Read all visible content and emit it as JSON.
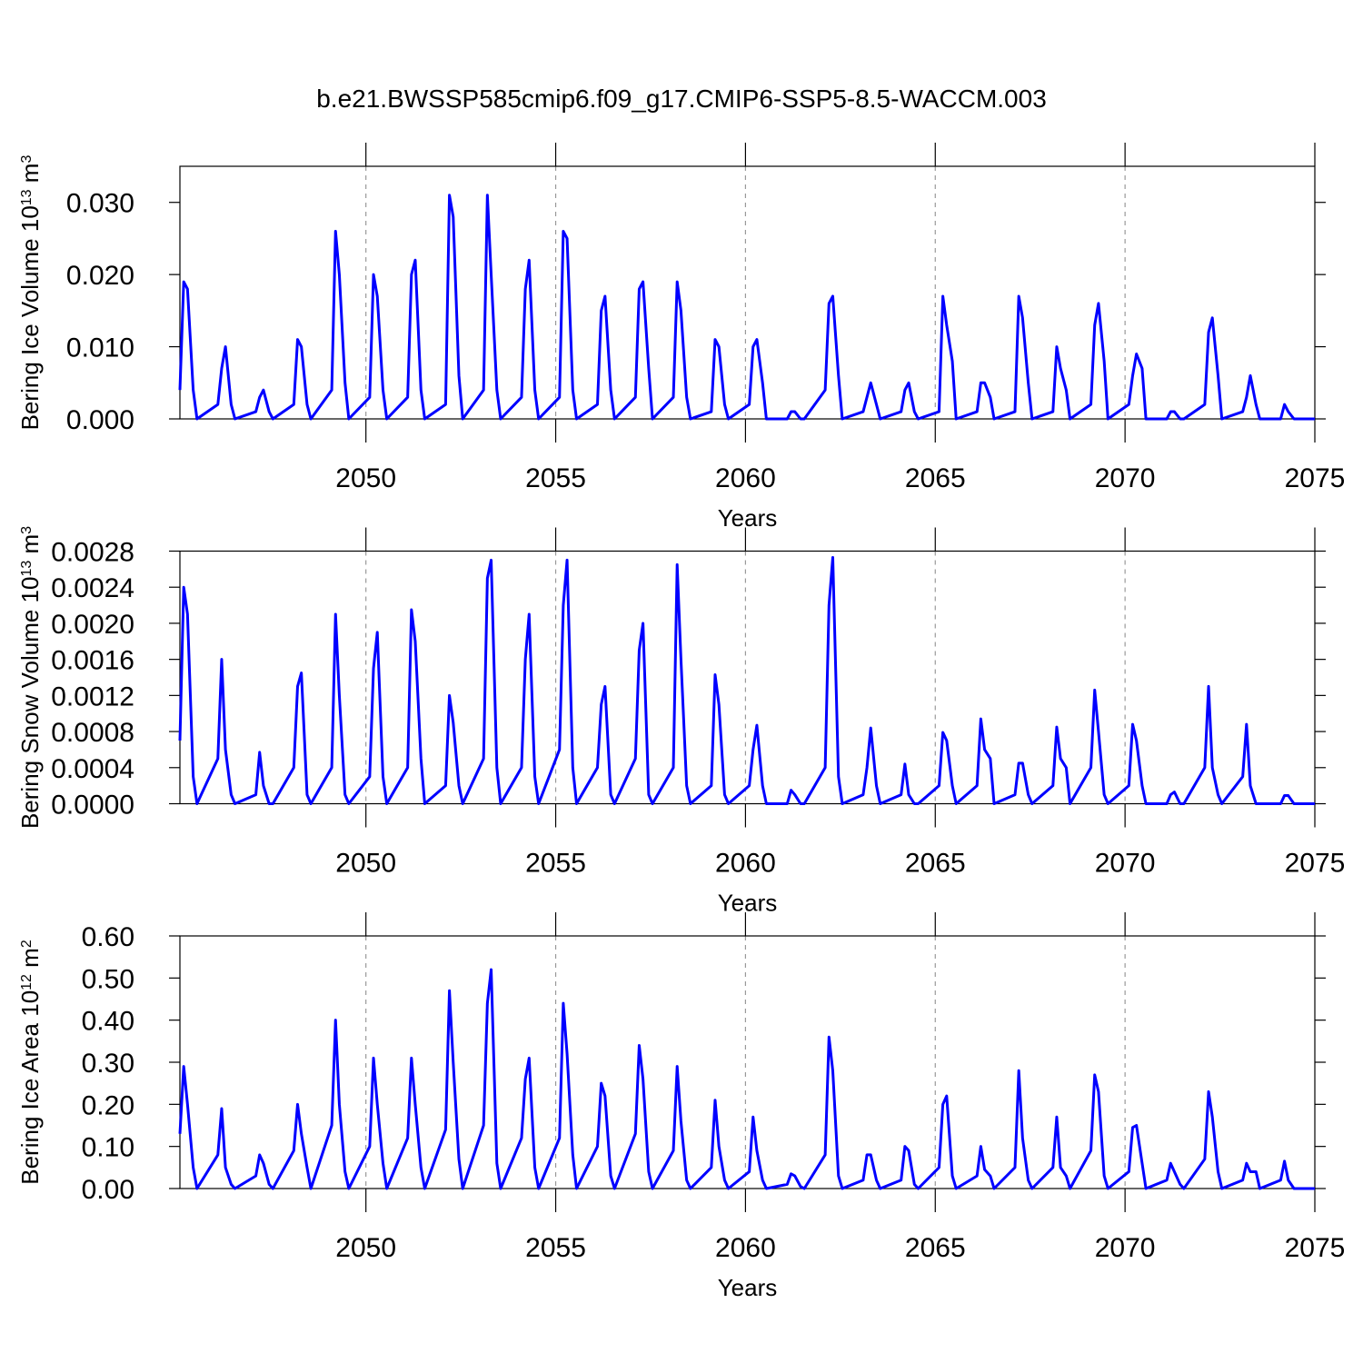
{
  "title": "b.e21.BWSSP585cmip6.f09_g17.CMIP6-SSP5-8.5-WACCM.003",
  "chart_data": [
    {
      "type": "line",
      "color": "#0000ff",
      "ylabel": [
        "Bering Ice Volume 10",
        "13",
        " m",
        "3"
      ],
      "xlabel": "Years",
      "xlim": [
        2045.1,
        2075
      ],
      "xticks": [
        2050,
        2055,
        2060,
        2065,
        2070,
        2075
      ],
      "grid": true,
      "ylim": [
        0,
        0.035
      ],
      "yticks": [
        {
          "value": 0,
          "label": "0.000"
        },
        {
          "value": 0.01,
          "label": "0.010"
        },
        {
          "value": 0.02,
          "label": "0.020"
        },
        {
          "value": 0.03,
          "label": "0.030"
        }
      ],
      "x": [
        2045.1,
        2045.2,
        2045.3,
        2045.45,
        2045.55,
        2046.1,
        2046.2,
        2046.3,
        2046.45,
        2046.55,
        2047.1,
        2047.2,
        2047.3,
        2047.45,
        2047.55,
        2048.1,
        2048.2,
        2048.3,
        2048.45,
        2048.55,
        2049.1,
        2049.2,
        2049.3,
        2049.45,
        2049.55,
        2050.1,
        2050.2,
        2050.3,
        2050.45,
        2050.55,
        2051.1,
        2051.2,
        2051.3,
        2051.45,
        2051.55,
        2052.1,
        2052.2,
        2052.3,
        2052.45,
        2052.55,
        2053.1,
        2053.2,
        2053.3,
        2053.45,
        2053.55,
        2054.1,
        2054.2,
        2054.3,
        2054.45,
        2054.55,
        2055.1,
        2055.2,
        2055.3,
        2055.45,
        2055.55,
        2056.1,
        2056.2,
        2056.3,
        2056.45,
        2056.55,
        2057.1,
        2057.2,
        2057.3,
        2057.45,
        2057.55,
        2058.1,
        2058.2,
        2058.3,
        2058.45,
        2058.55,
        2059.1,
        2059.2,
        2059.3,
        2059.45,
        2059.55,
        2060.1,
        2060.2,
        2060.3,
        2060.45,
        2060.55,
        2061.1,
        2061.2,
        2061.3,
        2061.45,
        2061.55,
        2062.1,
        2062.2,
        2062.3,
        2062.45,
        2062.55,
        2063.1,
        2063.2,
        2063.3,
        2063.45,
        2063.55,
        2064.1,
        2064.2,
        2064.3,
        2064.45,
        2064.55,
        2065.1,
        2065.2,
        2065.3,
        2065.45,
        2065.55,
        2066.1,
        2066.2,
        2066.3,
        2066.45,
        2066.55,
        2067.1,
        2067.2,
        2067.3,
        2067.45,
        2067.55,
        2068.1,
        2068.2,
        2068.3,
        2068.45,
        2068.55,
        2069.1,
        2069.2,
        2069.3,
        2069.45,
        2069.55,
        2070.1,
        2070.2,
        2070.3,
        2070.45,
        2070.55,
        2071.1,
        2071.2,
        2071.3,
        2071.45,
        2071.55,
        2072.1,
        2072.2,
        2072.3,
        2072.45,
        2072.55,
        2073.1,
        2073.2,
        2073.3,
        2073.45,
        2073.55,
        2074.1,
        2074.2,
        2074.3,
        2074.45,
        2074.55,
        2075
      ],
      "values": [
        0.004,
        0.019,
        0.018,
        0.004,
        0,
        0.002,
        0.007,
        0.01,
        0.002,
        0,
        0.001,
        0.003,
        0.004,
        0.001,
        0,
        0.002,
        0.011,
        0.01,
        0.002,
        0,
        0.004,
        0.026,
        0.02,
        0.005,
        0,
        0.003,
        0.02,
        0.017,
        0.004,
        0,
        0.003,
        0.02,
        0.022,
        0.004,
        0,
        0.002,
        0.031,
        0.028,
        0.006,
        0,
        0.004,
        0.031,
        0.02,
        0.004,
        0,
        0.003,
        0.018,
        0.022,
        0.004,
        0,
        0.003,
        0.026,
        0.025,
        0.004,
        0,
        0.002,
        0.015,
        0.017,
        0.004,
        0,
        0.003,
        0.018,
        0.019,
        0.007,
        0,
        0.003,
        0.019,
        0.015,
        0.003,
        0,
        0.001,
        0.011,
        0.01,
        0.002,
        0,
        0.002,
        0.01,
        0.011,
        0.005,
        0,
        0,
        0.001,
        0.001,
        0,
        0,
        0.004,
        0.016,
        0.017,
        0.006,
        0,
        0.001,
        0.003,
        0.005,
        0.002,
        0,
        0.001,
        0.004,
        0.005,
        0.001,
        0,
        0.001,
        0.017,
        0.013,
        0.008,
        0,
        0.001,
        0.005,
        0.005,
        0.003,
        0,
        0.001,
        0.017,
        0.014,
        0.005,
        0,
        0.001,
        0.01,
        0.007,
        0.004,
        0,
        0.002,
        0.013,
        0.016,
        0.008,
        0,
        0.002,
        0.006,
        0.009,
        0.007,
        0,
        0,
        0.001,
        0.001,
        0,
        0,
        0.002,
        0.012,
        0.014,
        0.006,
        0,
        0.001,
        0.003,
        0.006,
        0.002,
        0,
        0,
        0.002,
        0.001,
        0,
        0,
        0
      ]
    },
    {
      "type": "line",
      "color": "#0000ff",
      "ylabel": [
        "Bering Snow Volume 10",
        "13",
        " m",
        "3"
      ],
      "xlabel": "Years",
      "xlim": [
        2045.1,
        2075
      ],
      "xticks": [
        2050,
        2055,
        2060,
        2065,
        2070,
        2075
      ],
      "grid": true,
      "ylim": [
        0,
        0.0028
      ],
      "yticks": [
        {
          "value": 0,
          "label": "0.0000"
        },
        {
          "value": 0.0004,
          "label": "0.0004"
        },
        {
          "value": 0.0008,
          "label": "0.0008"
        },
        {
          "value": 0.0012,
          "label": "0.0012"
        },
        {
          "value": 0.0016,
          "label": "0.0016"
        },
        {
          "value": 0.002,
          "label": "0.0020"
        },
        {
          "value": 0.0024,
          "label": "0.0024"
        },
        {
          "value": 0.0028,
          "label": "0.0028"
        }
      ],
      "x": [
        2045.1,
        2045.2,
        2045.3,
        2045.45,
        2045.55,
        2046.1,
        2046.2,
        2046.3,
        2046.45,
        2046.55,
        2047.1,
        2047.2,
        2047.3,
        2047.45,
        2047.55,
        2048.1,
        2048.2,
        2048.3,
        2048.45,
        2048.55,
        2049.1,
        2049.2,
        2049.3,
        2049.45,
        2049.55,
        2050.1,
        2050.2,
        2050.3,
        2050.45,
        2050.55,
        2051.1,
        2051.2,
        2051.3,
        2051.45,
        2051.55,
        2052.1,
        2052.2,
        2052.3,
        2052.45,
        2052.55,
        2053.1,
        2053.2,
        2053.3,
        2053.45,
        2053.55,
        2054.1,
        2054.2,
        2054.3,
        2054.45,
        2054.55,
        2055.1,
        2055.2,
        2055.3,
        2055.45,
        2055.55,
        2056.1,
        2056.2,
        2056.3,
        2056.45,
        2056.55,
        2057.1,
        2057.2,
        2057.3,
        2057.45,
        2057.55,
        2058.1,
        2058.2,
        2058.3,
        2058.45,
        2058.55,
        2059.1,
        2059.2,
        2059.3,
        2059.45,
        2059.55,
        2060.1,
        2060.2,
        2060.3,
        2060.45,
        2060.55,
        2061.1,
        2061.2,
        2061.3,
        2061.45,
        2061.55,
        2062.1,
        2062.2,
        2062.3,
        2062.45,
        2062.55,
        2063.1,
        2063.2,
        2063.3,
        2063.45,
        2063.55,
        2064.1,
        2064.2,
        2064.3,
        2064.45,
        2064.55,
        2065.1,
        2065.2,
        2065.3,
        2065.45,
        2065.55,
        2066.1,
        2066.2,
        2066.3,
        2066.45,
        2066.55,
        2067.1,
        2067.2,
        2067.3,
        2067.45,
        2067.55,
        2068.1,
        2068.2,
        2068.3,
        2068.45,
        2068.55,
        2069.1,
        2069.2,
        2069.3,
        2069.45,
        2069.55,
        2070.1,
        2070.2,
        2070.3,
        2070.45,
        2070.55,
        2071.1,
        2071.2,
        2071.3,
        2071.45,
        2071.55,
        2072.1,
        2072.2,
        2072.3,
        2072.45,
        2072.55,
        2073.1,
        2073.2,
        2073.3,
        2073.45,
        2073.55,
        2074.1,
        2074.2,
        2074.3,
        2074.45,
        2074.55,
        2075
      ],
      "values": [
        0.0007,
        0.0024,
        0.0021,
        0.0003,
        0,
        0.0005,
        0.0016,
        0.0006,
        0.0001,
        0,
        0.0001,
        0.00057,
        0.0002,
        0,
        0,
        0.0004,
        0.0013,
        0.00145,
        0.0001,
        0,
        0.0004,
        0.0021,
        0.0012,
        0.0001,
        0,
        0.0003,
        0.0015,
        0.0019,
        0.0003,
        0,
        0.0004,
        0.00215,
        0.0018,
        0.0005,
        0,
        0.0002,
        0.0012,
        0.0009,
        0.0002,
        0,
        0.0005,
        0.0025,
        0.0027,
        0.0004,
        0,
        0.0004,
        0.0016,
        0.0021,
        0.0003,
        0,
        0.0006,
        0.0022,
        0.0027,
        0.0004,
        0,
        0.0004,
        0.0011,
        0.0013,
        0.0001,
        0,
        0.0005,
        0.0017,
        0.002,
        0.0001,
        0,
        0.0004,
        0.00265,
        0.0016,
        0.0002,
        0,
        0.0002,
        0.00143,
        0.0011,
        0.0001,
        0,
        0.0002,
        0.0006,
        0.00087,
        0.0002,
        0,
        0,
        0.00015,
        0.0001,
        0,
        0,
        0.0004,
        0.0022,
        0.00273,
        0.0003,
        0,
        0.0001,
        0.0004,
        0.00084,
        0.0002,
        0,
        0.0001,
        0.00044,
        0.0001,
        0,
        0,
        0.0002,
        0.00079,
        0.0007,
        0.0002,
        0,
        0.0002,
        0.00094,
        0.0006,
        0.0005,
        0,
        0.0001,
        0.00045,
        0.00045,
        0.0001,
        0,
        0.0002,
        0.00085,
        0.0005,
        0.0004,
        0,
        0.0004,
        0.00126,
        0.0008,
        0.0001,
        0,
        0.0002,
        0.00088,
        0.0007,
        0.0002,
        0,
        0,
        0.0001,
        0.00013,
        0,
        0,
        0.0004,
        0.0013,
        0.0004,
        0.0001,
        0,
        0.0003,
        0.00088,
        0.0002,
        0,
        0,
        0,
        9e-05,
        9e-05,
        0,
        0,
        0
      ]
    },
    {
      "type": "line",
      "color": "#0000ff",
      "ylabel": [
        "Bering Ice Area 10",
        "12",
        " m",
        "2"
      ],
      "xlabel": "Years",
      "xlim": [
        2045.1,
        2075
      ],
      "xticks": [
        2050,
        2055,
        2060,
        2065,
        2070,
        2075
      ],
      "grid": true,
      "ylim": [
        0,
        0.6
      ],
      "yticks": [
        {
          "value": 0,
          "label": "0.00"
        },
        {
          "value": 0.1,
          "label": "0.10"
        },
        {
          "value": 0.2,
          "label": "0.20"
        },
        {
          "value": 0.3,
          "label": "0.30"
        },
        {
          "value": 0.4,
          "label": "0.40"
        },
        {
          "value": 0.5,
          "label": "0.50"
        },
        {
          "value": 0.6,
          "label": "0.60"
        }
      ],
      "x": [
        2045.1,
        2045.2,
        2045.3,
        2045.45,
        2045.55,
        2046.1,
        2046.2,
        2046.3,
        2046.45,
        2046.55,
        2047.1,
        2047.2,
        2047.3,
        2047.45,
        2047.55,
        2048.1,
        2048.2,
        2048.3,
        2048.45,
        2048.55,
        2049.1,
        2049.2,
        2049.3,
        2049.45,
        2049.55,
        2050.1,
        2050.2,
        2050.3,
        2050.45,
        2050.55,
        2051.1,
        2051.2,
        2051.3,
        2051.45,
        2051.55,
        2052.1,
        2052.2,
        2052.3,
        2052.45,
        2052.55,
        2053.1,
        2053.2,
        2053.3,
        2053.45,
        2053.55,
        2054.1,
        2054.2,
        2054.3,
        2054.45,
        2054.55,
        2055.1,
        2055.2,
        2055.3,
        2055.45,
        2055.55,
        2056.1,
        2056.2,
        2056.3,
        2056.45,
        2056.55,
        2057.1,
        2057.2,
        2057.3,
        2057.45,
        2057.55,
        2058.1,
        2058.2,
        2058.3,
        2058.45,
        2058.55,
        2059.1,
        2059.2,
        2059.3,
        2059.45,
        2059.55,
        2060.1,
        2060.2,
        2060.3,
        2060.45,
        2060.55,
        2061.1,
        2061.2,
        2061.3,
        2061.45,
        2061.55,
        2062.1,
        2062.2,
        2062.3,
        2062.45,
        2062.55,
        2063.1,
        2063.2,
        2063.3,
        2063.45,
        2063.55,
        2064.1,
        2064.2,
        2064.3,
        2064.45,
        2064.55,
        2065.1,
        2065.2,
        2065.3,
        2065.45,
        2065.55,
        2066.1,
        2066.2,
        2066.3,
        2066.45,
        2066.55,
        2067.1,
        2067.2,
        2067.3,
        2067.45,
        2067.55,
        2068.1,
        2068.2,
        2068.3,
        2068.45,
        2068.55,
        2069.1,
        2069.2,
        2069.3,
        2069.45,
        2069.55,
        2070.1,
        2070.2,
        2070.3,
        2070.45,
        2070.55,
        2071.1,
        2071.2,
        2071.3,
        2071.45,
        2071.55,
        2072.1,
        2072.2,
        2072.3,
        2072.45,
        2072.55,
        2073.1,
        2073.2,
        2073.3,
        2073.45,
        2073.55,
        2074.1,
        2074.2,
        2074.3,
        2074.45,
        2074.55,
        2075
      ],
      "values": [
        0.13,
        0.29,
        0.2,
        0.05,
        0,
        0.08,
        0.19,
        0.05,
        0.01,
        0,
        0.03,
        0.08,
        0.06,
        0.01,
        0,
        0.09,
        0.2,
        0.13,
        0.05,
        0,
        0.15,
        0.4,
        0.2,
        0.04,
        0,
        0.1,
        0.31,
        0.2,
        0.06,
        0,
        0.12,
        0.31,
        0.2,
        0.05,
        0,
        0.14,
        0.47,
        0.3,
        0.07,
        0,
        0.15,
        0.44,
        0.52,
        0.06,
        0,
        0.12,
        0.26,
        0.31,
        0.05,
        0,
        0.12,
        0.44,
        0.32,
        0.08,
        0,
        0.1,
        0.25,
        0.22,
        0.03,
        0,
        0.13,
        0.34,
        0.26,
        0.04,
        0,
        0.09,
        0.29,
        0.16,
        0.02,
        0,
        0.05,
        0.21,
        0.1,
        0.02,
        0,
        0.04,
        0.17,
        0.09,
        0.02,
        0,
        0.01,
        0.035,
        0.03,
        0.005,
        0,
        0.08,
        0.36,
        0.28,
        0.03,
        0,
        0.02,
        0.08,
        0.08,
        0.02,
        0,
        0.02,
        0.1,
        0.09,
        0.01,
        0,
        0.05,
        0.2,
        0.22,
        0.03,
        0,
        0.03,
        0.1,
        0.045,
        0.03,
        0,
        0.05,
        0.28,
        0.12,
        0.02,
        0,
        0.05,
        0.17,
        0.05,
        0.03,
        0,
        0.09,
        0.27,
        0.23,
        0.03,
        0,
        0.04,
        0.145,
        0.15,
        0.06,
        0,
        0.02,
        0.06,
        0.04,
        0.01,
        0,
        0.07,
        0.23,
        0.17,
        0.04,
        0,
        0.02,
        0.06,
        0.04,
        0.04,
        0,
        0.02,
        0.065,
        0.02,
        0,
        0,
        0
      ]
    }
  ]
}
